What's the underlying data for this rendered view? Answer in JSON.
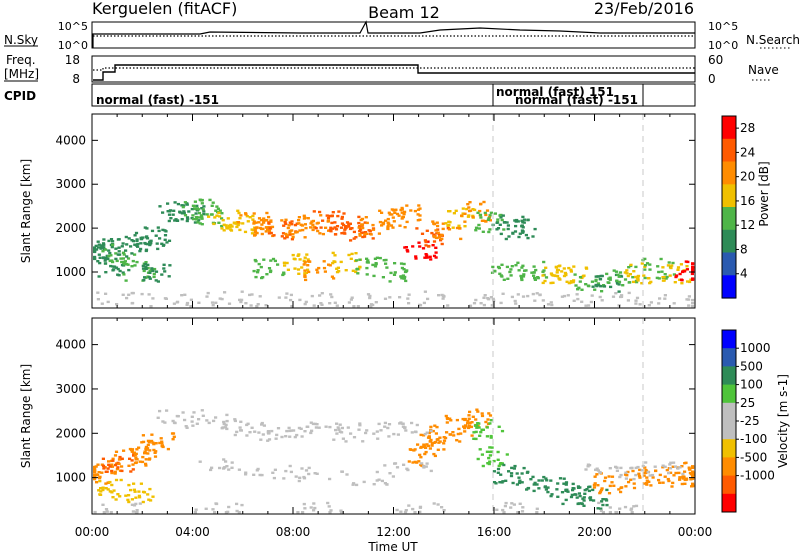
{
  "header": {
    "radar": "Kerguelen (fitACF)",
    "beam": "Beam 12",
    "date": "23/Feb/2016"
  },
  "strips": {
    "nsky": {
      "label": "N.Sky",
      "ticks": [
        "10^5",
        "10^0"
      ]
    },
    "nsearch": {
      "label": "N.Search",
      "ticks": [
        "10^5",
        "10^0"
      ]
    },
    "freq": {
      "label_line1": "Freq.",
      "label_line2": "[MHz]",
      "ticks": [
        "18",
        "8"
      ]
    },
    "nave": {
      "label": "Nave",
      "ticks": [
        "60",
        "0"
      ]
    },
    "cpid": {
      "label": "CPID",
      "segments": [
        {
          "text": "normal (fast) -151"
        },
        {
          "text": "normal (fast) 151"
        },
        {
          "text": "normal (fast) -151"
        }
      ]
    }
  },
  "colors": {
    "power": [
      "#0000ff",
      "#2a5ab0",
      "#2e8b57",
      "#4fb548",
      "#f0c000",
      "#ff8c00",
      "#ff5a00",
      "#ff0000"
    ],
    "velocity": [
      "#ff0000",
      "#ff5a00",
      "#ff8c00",
      "#f0c000",
      "#bfbfbf",
      "#bfbfbf",
      "#4fc43a",
      "#2e8b57",
      "#2a5ab0",
      "#0000ff"
    ],
    "ground_scatter": "#bfbfbf"
  },
  "chart_data": [
    {
      "type": "heatmap",
      "title": "",
      "xlabel": "Time UT",
      "ylabel": "Slant Range [km]",
      "x_ticks": [
        "00:00",
        "04:00",
        "08:00",
        "12:00",
        "16:00",
        "20:00",
        "00:00"
      ],
      "y_ticks": [
        "1000",
        "2000",
        "3000",
        "4000"
      ],
      "xlim_hours": [
        0,
        24
      ],
      "ylim_km": [
        180,
        4600
      ],
      "colorbar": {
        "label": "Power [dB]",
        "ticks": [
          "28",
          "24",
          "20",
          "16",
          "12",
          "8",
          "4"
        ],
        "range": [
          0,
          30
        ]
      },
      "series": [
        {
          "kind": "backscatter",
          "points": [
            [
              0.0,
              1500,
              8
            ],
            [
              0.5,
              1550,
              10
            ],
            [
              1.0,
              1420,
              14
            ],
            [
              1.5,
              1600,
              11
            ],
            [
              2.0,
              1750,
              9
            ],
            [
              2.5,
              1850,
              8
            ],
            [
              0.8,
              1150,
              10
            ],
            [
              1.8,
              1050,
              12
            ],
            [
              2.6,
              1000,
              8
            ],
            [
              3.2,
              2400,
              9
            ],
            [
              3.8,
              2350,
              11
            ],
            [
              4.2,
              2450,
              13
            ],
            [
              4.6,
              2300,
              14
            ],
            [
              5.2,
              2200,
              16
            ],
            [
              5.8,
              2100,
              18
            ],
            [
              6.4,
              2150,
              20
            ],
            [
              7.0,
              2050,
              22
            ],
            [
              7.6,
              1950,
              24
            ],
            [
              8.2,
              2000,
              22
            ],
            [
              8.8,
              2100,
              20
            ],
            [
              9.4,
              2200,
              23
            ],
            [
              10.0,
              2100,
              26
            ],
            [
              10.6,
              1950,
              24
            ],
            [
              11.2,
              2050,
              20
            ],
            [
              11.8,
              2250,
              22
            ],
            [
              12.4,
              2350,
              20
            ],
            [
              7.0,
              1100,
              14
            ],
            [
              8.0,
              1200,
              18
            ],
            [
              9.0,
              1050,
              20
            ],
            [
              10.0,
              1250,
              16
            ],
            [
              11.0,
              1150,
              12
            ],
            [
              12.0,
              1000,
              14
            ],
            [
              13.0,
              1500,
              28
            ],
            [
              13.5,
              1800,
              26
            ],
            [
              14.0,
              1950,
              22
            ],
            [
              14.6,
              2250,
              18
            ],
            [
              15.2,
              2400,
              20
            ],
            [
              15.8,
              2150,
              14
            ],
            [
              16.5,
              2100,
              10
            ],
            [
              17.0,
              2000,
              9
            ],
            [
              16.5,
              1050,
              12
            ],
            [
              17.5,
              1050,
              14
            ],
            [
              18.5,
              950,
              16
            ],
            [
              19.0,
              1000,
              18
            ],
            [
              19.8,
              800,
              14
            ],
            [
              20.5,
              750,
              10
            ],
            [
              21.0,
              950,
              12
            ],
            [
              21.8,
              1000,
              16
            ],
            [
              22.5,
              1100,
              14
            ],
            [
              23.2,
              1000,
              18
            ],
            [
              23.8,
              1050,
              28
            ]
          ]
        },
        {
          "kind": "ground-scatter",
          "points": [
            [
              1.0,
              400,
              8
            ],
            [
              3.0,
              380,
              6
            ],
            [
              5.0,
              420,
              6
            ],
            [
              7.0,
              390,
              6
            ],
            [
              9.0,
              410,
              6
            ],
            [
              11.0,
              400,
              8
            ],
            [
              13.0,
              420,
              8
            ],
            [
              15.0,
              380,
              6
            ],
            [
              17.0,
              400,
              6
            ],
            [
              19.0,
              390,
              6
            ],
            [
              21.0,
              420,
              8
            ],
            [
              23.0,
              400,
              8
            ]
          ]
        }
      ]
    },
    {
      "type": "heatmap",
      "title": "",
      "xlabel": "Time UT",
      "ylabel": "Slant Range [km]",
      "x_ticks": [
        "00:00",
        "04:00",
        "08:00",
        "12:00",
        "16:00",
        "20:00",
        "00:00"
      ],
      "y_ticks": [
        "1000",
        "2000",
        "3000",
        "4000"
      ],
      "xlim_hours": [
        0,
        24
      ],
      "ylim_km": [
        180,
        4600
      ],
      "colorbar": {
        "label": "Velocity [m s-1]",
        "ticks": [
          "1000",
          "500",
          "100",
          "25",
          "-25",
          "-100",
          "-500",
          "-1000"
        ],
        "range": [
          -1000,
          1000
        ]
      },
      "series": [
        {
          "kind": "backscatter",
          "points": [
            [
              0.0,
              1100,
              -200
            ],
            [
              0.5,
              1250,
              -400
            ],
            [
              1.0,
              1350,
              -500
            ],
            [
              1.5,
              1500,
              -450
            ],
            [
              2.0,
              1650,
              -400
            ],
            [
              2.6,
              1800,
              -350
            ],
            [
              0.8,
              750,
              -60
            ],
            [
              1.8,
              700,
              -50
            ],
            [
              13.0,
              1500,
              -300
            ],
            [
              13.4,
              1850,
              -400
            ],
            [
              14.0,
              2000,
              -300
            ],
            [
              14.6,
              2200,
              -200
            ],
            [
              15.2,
              2350,
              -350
            ],
            [
              15.7,
              2100,
              60
            ],
            [
              15.9,
              1500,
              80
            ],
            [
              16.5,
              1100,
              200
            ],
            [
              17.5,
              950,
              250
            ],
            [
              18.5,
              800,
              300
            ],
            [
              19.2,
              650,
              250
            ],
            [
              19.8,
              550,
              200
            ],
            [
              20.5,
              900,
              -150
            ],
            [
              21.5,
              1000,
              -120
            ],
            [
              22.5,
              1050,
              -100
            ],
            [
              23.5,
              1150,
              -300
            ],
            [
              23.9,
              1050,
              -450
            ]
          ]
        },
        {
          "kind": "ground-scatter",
          "points": [
            [
              3.5,
              2400,
              0
            ],
            [
              4.5,
              2300,
              0
            ],
            [
              5.5,
              2200,
              0
            ],
            [
              6.5,
              2100,
              0
            ],
            [
              7.5,
              2000,
              0
            ],
            [
              8.5,
              2050,
              0
            ],
            [
              9.5,
              2150,
              0
            ],
            [
              10.5,
              2000,
              0
            ],
            [
              11.5,
              2100,
              0
            ],
            [
              12.5,
              2150,
              0
            ],
            [
              5.0,
              1300,
              0
            ],
            [
              7.0,
              1150,
              0
            ],
            [
              9.0,
              1100,
              0
            ],
            [
              11.0,
              1000,
              0
            ],
            [
              12.5,
              1200,
              0
            ],
            [
              20.5,
              1200,
              0
            ],
            [
              21.5,
              1150,
              0
            ],
            [
              22.5,
              1250,
              0
            ],
            [
              1.0,
              300,
              0
            ],
            [
              5.0,
              300,
              0
            ],
            [
              9.0,
              300,
              0
            ],
            [
              13.0,
              300,
              0
            ],
            [
              17.0,
              300,
              0
            ],
            [
              21.0,
              300,
              0
            ]
          ]
        }
      ]
    }
  ]
}
